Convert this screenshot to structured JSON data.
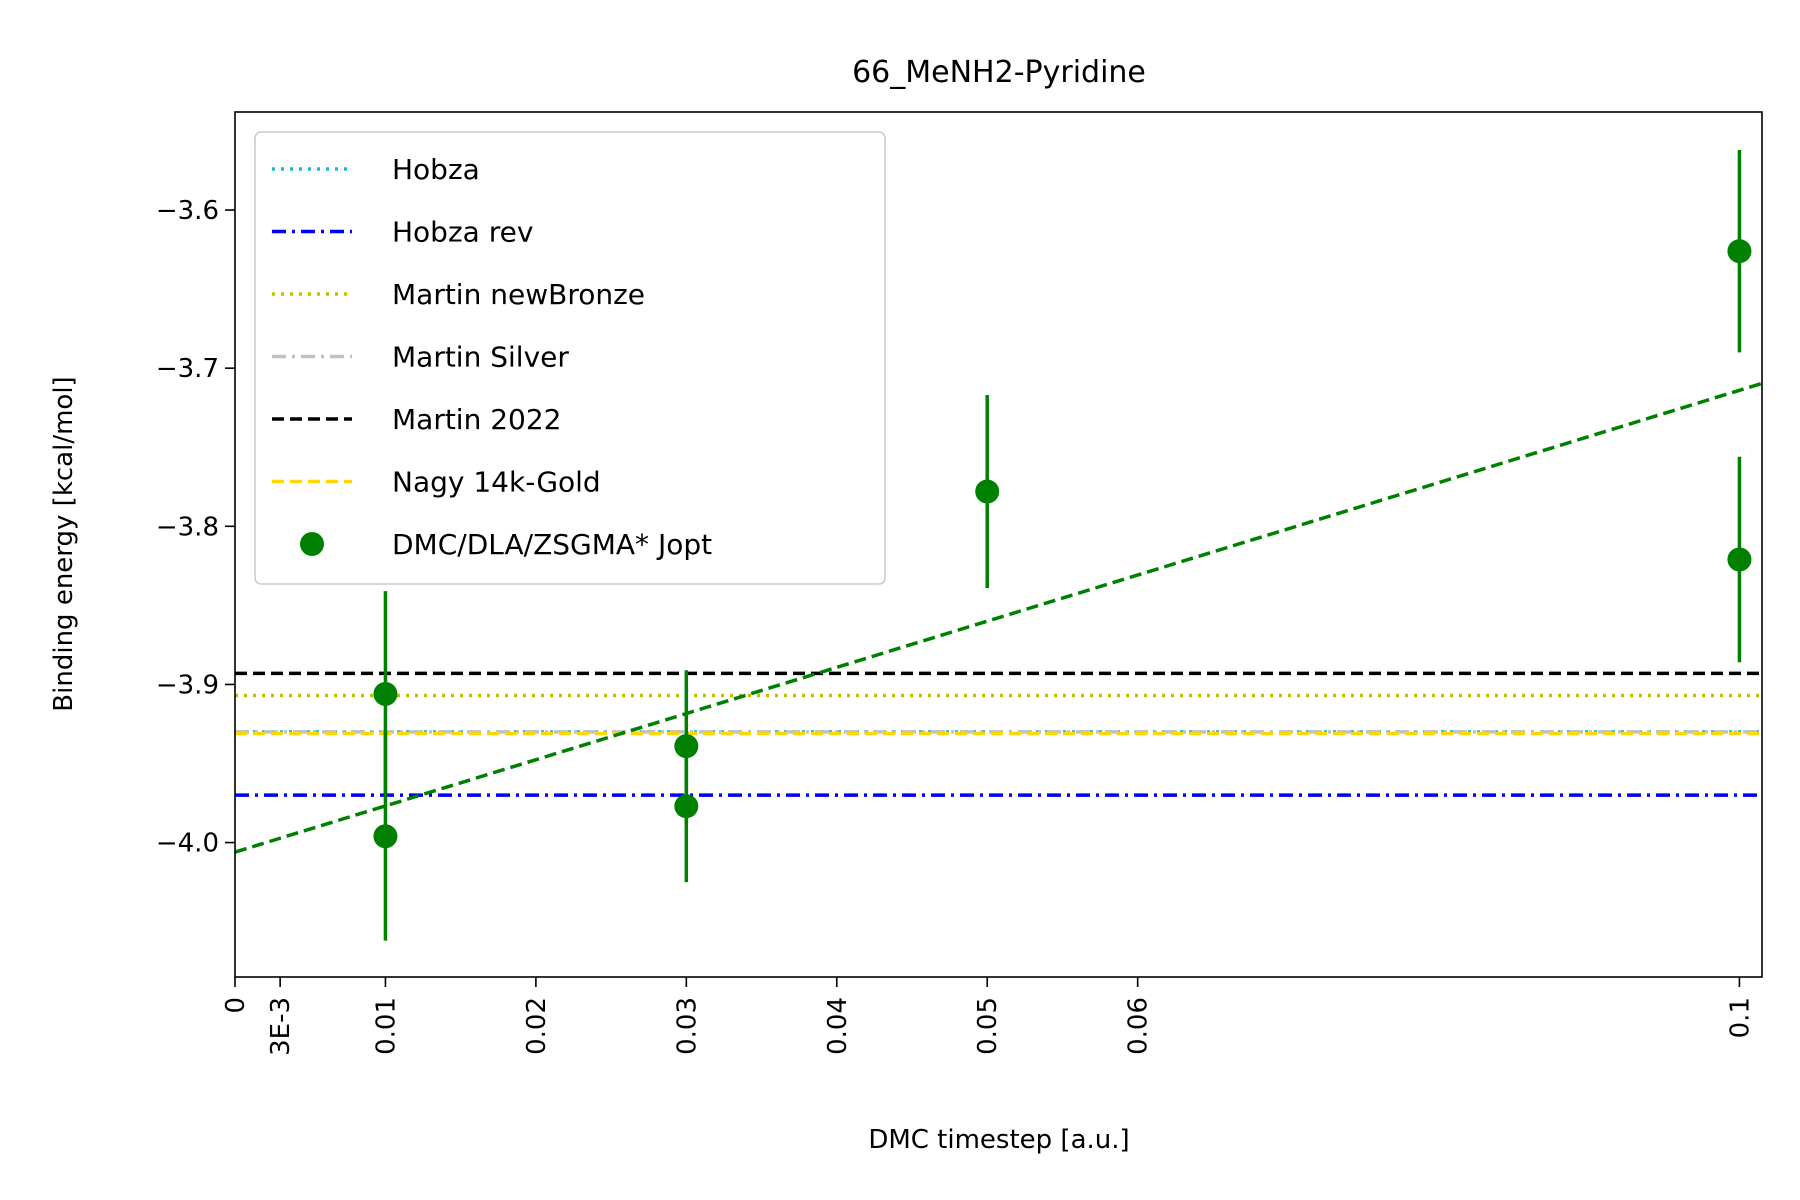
{
  "chart_data": {
    "type": "scatter",
    "title": "66_MeNH2-Pyridine",
    "xlabel": "DMC timestep [a.u.]",
    "ylabel": "Binding energy [kcal/mol]",
    "xlim": [
      0,
      0.1015
    ],
    "ylim": [
      -4.085,
      -3.538
    ],
    "x_ticks": [
      {
        "value": 0,
        "label": "0"
      },
      {
        "value": 0.003,
        "label": "3E-3"
      },
      {
        "value": 0.01,
        "label": "0.01"
      },
      {
        "value": 0.02,
        "label": "0.02"
      },
      {
        "value": 0.03,
        "label": "0.03"
      },
      {
        "value": 0.04,
        "label": "0.04"
      },
      {
        "value": 0.05,
        "label": "0.05"
      },
      {
        "value": 0.06,
        "label": "0.06"
      },
      {
        "value": 0.1,
        "label": "0.1"
      }
    ],
    "y_ticks": [
      {
        "value": -4.0,
        "label": "−4.0"
      },
      {
        "value": -3.9,
        "label": "−3.9"
      },
      {
        "value": -3.8,
        "label": "−3.8"
      },
      {
        "value": -3.7,
        "label": "−3.7"
      },
      {
        "value": -3.6,
        "label": "−3.6"
      }
    ],
    "grid": false,
    "legend_position": "top-left",
    "reference_lines": [
      {
        "name": "Hobza",
        "y": -3.93,
        "color": "#17becf",
        "style": "dotted"
      },
      {
        "name": "Hobza rev",
        "y": -3.97,
        "color": "#0000ff",
        "style": "dashdot"
      },
      {
        "name": "Martin newBronze",
        "y": -3.907,
        "color": "#bfbf00",
        "style": "dotted"
      },
      {
        "name": "Martin Silver",
        "y": -3.93,
        "color": "#c0c0c0",
        "style": "dashdot"
      },
      {
        "name": "Martin 2022",
        "y": -3.893,
        "color": "#000000",
        "style": "dashed"
      },
      {
        "name": "Nagy 14k-Gold",
        "y": -3.931,
        "color": "#ffd700",
        "style": "dashed"
      }
    ],
    "series": [
      {
        "name": "DMC/DLA/ZSGMA* Jopt",
        "color": "#008000",
        "points": [
          {
            "x": 0.01,
            "y": -3.906,
            "err": 0.065
          },
          {
            "x": 0.01,
            "y": -3.996,
            "err": 0.066
          },
          {
            "x": 0.03,
            "y": -3.939,
            "err": 0.048
          },
          {
            "x": 0.03,
            "y": -3.977,
            "err": 0.048
          },
          {
            "x": 0.05,
            "y": -3.778,
            "err": 0.061
          },
          {
            "x": 0.1,
            "y": -3.626,
            "err": 0.064
          },
          {
            "x": 0.1,
            "y": -3.821,
            "err": 0.065
          }
        ]
      }
    ],
    "fit_line": {
      "intercept": -4.006,
      "slope": 2.92,
      "color": "#008000",
      "style": "dashed"
    }
  }
}
